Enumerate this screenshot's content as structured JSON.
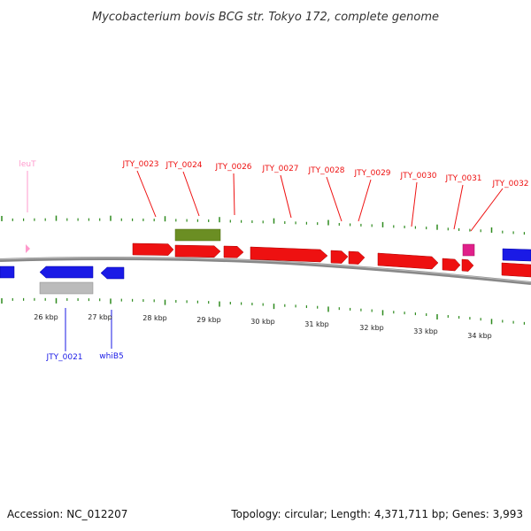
{
  "title": "Mycobacterium bovis BCG str. Tokyo 172, complete genome",
  "accession": "Accession: NC_012207",
  "summary": "Topology: circular; Length: 4,371,711 bp; Genes: 3,993",
  "colors": {
    "forward_gene": "#ee1111",
    "reverse_gene": "#1a1ae6",
    "rna_gene": "#ff99cc",
    "pseudo_gene": "#bbbbbb",
    "olive_feature": "#6b8e23",
    "magenta_feature": "#e0208a",
    "tick": "#2e8b1e",
    "backbone": "#888888"
  },
  "kbp_labels": [
    "26 kbp",
    "27 kbp",
    "28 kbp",
    "29 kbp",
    "30 kbp",
    "31 kbp",
    "32 kbp",
    "33 kbp",
    "34 kbp"
  ],
  "forward_labels": [
    {
      "name": "leuT"
    },
    {
      "name": "JTY_0023"
    },
    {
      "name": "JTY_0024"
    },
    {
      "name": "JTY_0026"
    },
    {
      "name": "JTY_0027"
    },
    {
      "name": "JTY_0028"
    },
    {
      "name": "JTY_0029"
    },
    {
      "name": "JTY_0030"
    },
    {
      "name": "JTY_0031"
    },
    {
      "name": "JTY_0032"
    }
  ],
  "reverse_labels": [
    {
      "name": "JTY_0021"
    },
    {
      "name": "whiB5"
    }
  ]
}
